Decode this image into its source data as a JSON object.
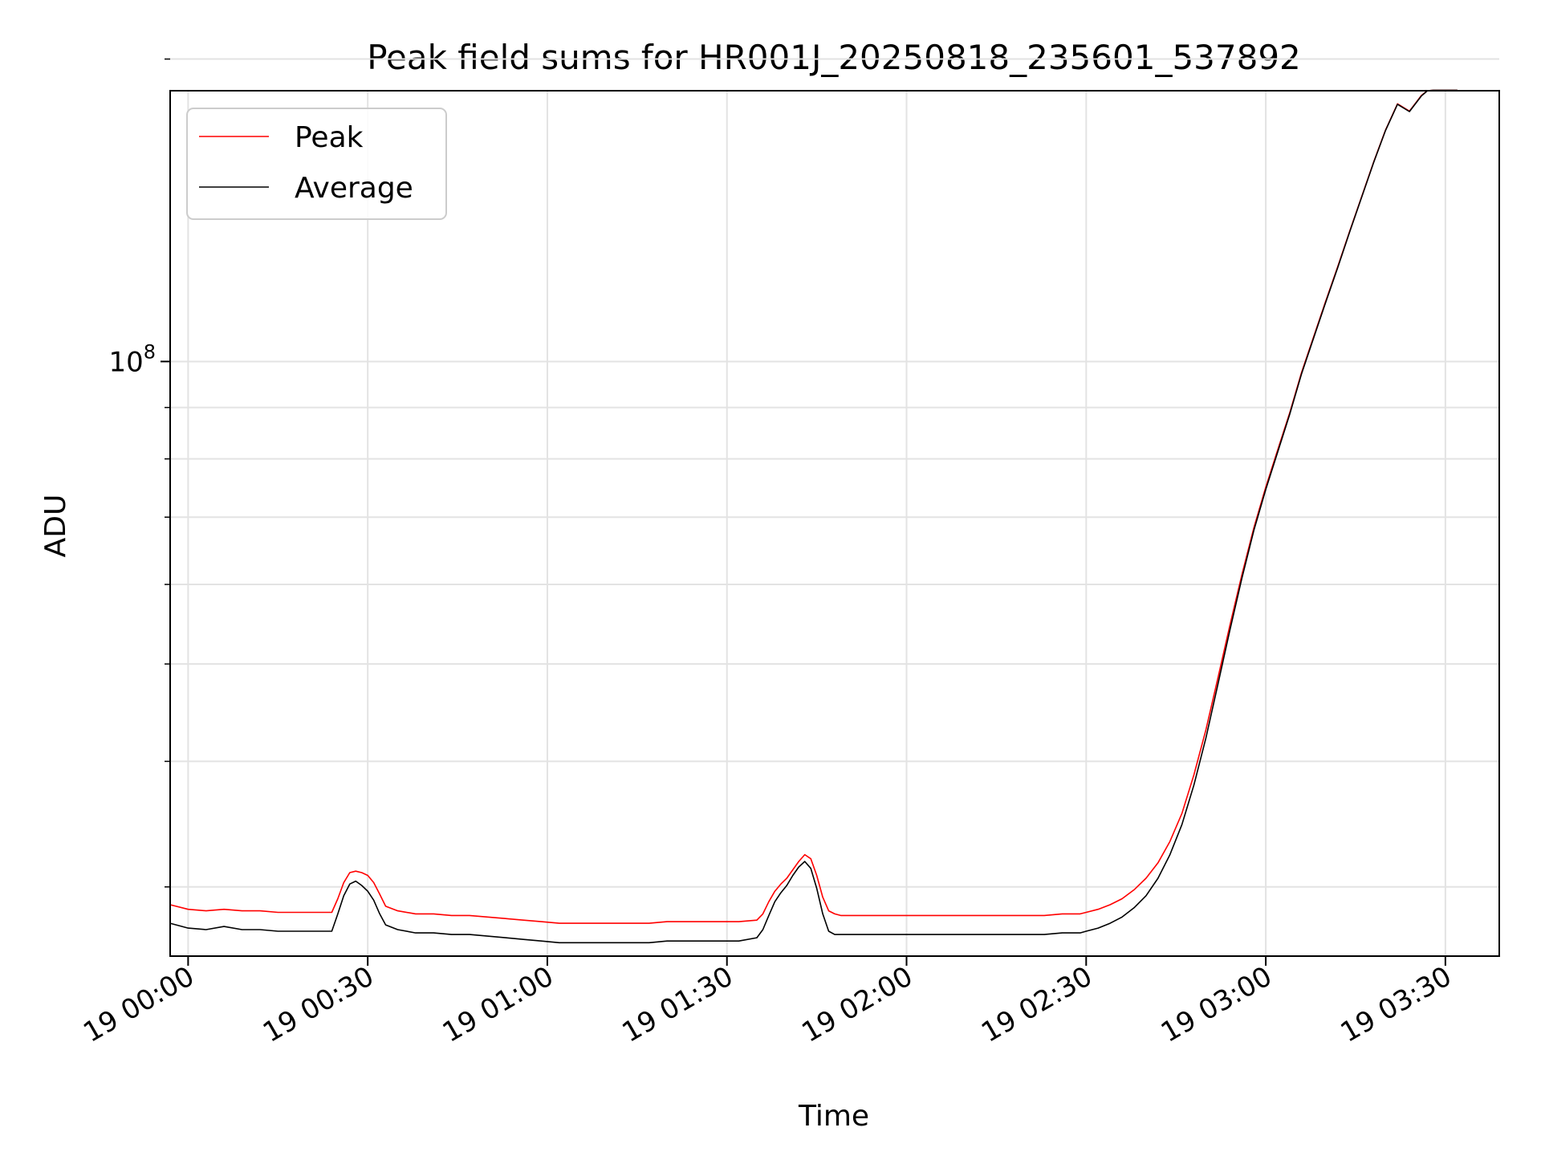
{
  "chart_data": {
    "type": "line",
    "title": "Peak field sums for HR001J_20250818_235601_537892",
    "xlabel": "Time",
    "ylabel": "ADU",
    "y_scale": "log",
    "ylim": [
      25600000,
      186000000
    ],
    "xlim": [
      "19 00:00 -3min",
      "19 03:30 +9min"
    ],
    "xlim_minutes": [
      -3,
      219
    ],
    "grid": true,
    "legend_position": "upper-left",
    "x_ticks": [
      {
        "minutes": 0,
        "label": "19 00:00"
      },
      {
        "minutes": 30,
        "label": "19 00:30"
      },
      {
        "minutes": 60,
        "label": "19 01:00"
      },
      {
        "minutes": 90,
        "label": "19 01:30"
      },
      {
        "minutes": 120,
        "label": "19 02:00"
      },
      {
        "minutes": 150,
        "label": "19 02:30"
      },
      {
        "minutes": 180,
        "label": "19 03:00"
      },
      {
        "minutes": 210,
        "label": "19 03:30"
      }
    ],
    "y_major_ticks": [
      {
        "value": 100000000,
        "label_base": "10",
        "label_exp": "8"
      }
    ],
    "y_minor_ticks": [
      30000000,
      40000000,
      50000000,
      60000000,
      70000000,
      80000000,
      90000000,
      200000000
    ],
    "series": [
      {
        "name": "Peak",
        "color": "#ff0000",
        "x_minutes": [
          -3,
          0,
          3,
          6,
          9,
          12,
          15,
          18,
          21,
          24,
          25,
          26,
          27,
          28,
          29,
          30,
          31,
          32,
          33,
          35,
          38,
          41,
          44,
          47,
          50,
          53,
          56,
          59,
          62,
          65,
          68,
          71,
          74,
          77,
          80,
          83,
          86,
          89,
          92,
          95,
          96,
          97,
          98,
          99,
          100,
          101,
          102,
          103,
          104,
          105,
          106,
          107,
          108,
          109,
          110,
          113,
          116,
          119,
          122,
          125,
          128,
          131,
          134,
          137,
          140,
          143,
          146,
          149,
          150,
          152,
          154,
          156,
          158,
          160,
          162,
          164,
          166,
          168,
          170,
          172,
          174,
          176,
          178,
          180,
          182,
          184,
          186,
          188,
          190,
          192,
          194,
          196,
          198,
          200,
          202,
          204,
          206,
          207,
          208,
          210,
          212
        ],
        "y": [
          28800000,
          28500000,
          28400000,
          28500000,
          28400000,
          28400000,
          28300000,
          28300000,
          28300000,
          28300000,
          29200000,
          30300000,
          31000000,
          31100000,
          31000000,
          30800000,
          30300000,
          29500000,
          28700000,
          28400000,
          28200000,
          28200000,
          28100000,
          28100000,
          28000000,
          27900000,
          27800000,
          27700000,
          27600000,
          27600000,
          27600000,
          27600000,
          27600000,
          27600000,
          27700000,
          27700000,
          27700000,
          27700000,
          27700000,
          27800000,
          28200000,
          29000000,
          29700000,
          30200000,
          30600000,
          31200000,
          31800000,
          32300000,
          32000000,
          30800000,
          29300000,
          28400000,
          28200000,
          28100000,
          28100000,
          28100000,
          28100000,
          28100000,
          28100000,
          28100000,
          28100000,
          28100000,
          28100000,
          28100000,
          28100000,
          28100000,
          28200000,
          28200000,
          28300000,
          28500000,
          28800000,
          29200000,
          29800000,
          30600000,
          31700000,
          33300000,
          35500000,
          38800000,
          43000000,
          48400000,
          54600000,
          61300000,
          68300000,
          75000000,
          81700000,
          88900000,
          97600000,
          105900000,
          114800000,
          124200000,
          134700000,
          145800000,
          157900000,
          170000000,
          180500000,
          177500000,
          184000000,
          186000000,
          186200000,
          186200000,
          186200000
        ]
      },
      {
        "name": "Average",
        "color": "#000000",
        "x_minutes": [
          -3,
          0,
          3,
          6,
          9,
          12,
          15,
          18,
          21,
          24,
          25,
          26,
          27,
          28,
          29,
          30,
          31,
          32,
          33,
          35,
          38,
          41,
          44,
          47,
          50,
          53,
          56,
          59,
          62,
          65,
          68,
          71,
          74,
          77,
          80,
          83,
          86,
          89,
          92,
          95,
          96,
          97,
          98,
          99,
          100,
          101,
          102,
          103,
          104,
          105,
          106,
          107,
          108,
          109,
          110,
          113,
          116,
          119,
          122,
          125,
          128,
          131,
          134,
          137,
          140,
          143,
          146,
          149,
          150,
          152,
          154,
          156,
          158,
          160,
          162,
          164,
          166,
          168,
          170,
          172,
          174,
          176,
          178,
          180,
          182,
          184,
          186,
          188,
          190,
          192,
          194,
          196,
          198,
          200,
          202,
          204,
          206,
          207,
          208,
          210,
          212
        ],
        "y": [
          27600000,
          27300000,
          27200000,
          27400000,
          27200000,
          27200000,
          27100000,
          27100000,
          27100000,
          27100000,
          28200000,
          29400000,
          30200000,
          30400000,
          30100000,
          29700000,
          29100000,
          28200000,
          27500000,
          27200000,
          27000000,
          27000000,
          26900000,
          26900000,
          26800000,
          26700000,
          26600000,
          26500000,
          26400000,
          26400000,
          26400000,
          26400000,
          26400000,
          26400000,
          26500000,
          26500000,
          26500000,
          26500000,
          26500000,
          26700000,
          27200000,
          28100000,
          29000000,
          29600000,
          30100000,
          30800000,
          31400000,
          31800000,
          31300000,
          29900000,
          28200000,
          27100000,
          26900000,
          26900000,
          26900000,
          26900000,
          26900000,
          26900000,
          26900000,
          26900000,
          26900000,
          26900000,
          26900000,
          26900000,
          26900000,
          26900000,
          27000000,
          27000000,
          27100000,
          27300000,
          27600000,
          28000000,
          28600000,
          29400000,
          30600000,
          32300000,
          34600000,
          37900000,
          42200000,
          47700000,
          54000000,
          60800000,
          67900000,
          74600000,
          81300000,
          88600000,
          97300000,
          105600000,
          114500000,
          123900000,
          134500000,
          145600000,
          157700000,
          169800000,
          180300000,
          177300000,
          183800000,
          186000000,
          186200000,
          186200000,
          186200000
        ]
      }
    ]
  }
}
